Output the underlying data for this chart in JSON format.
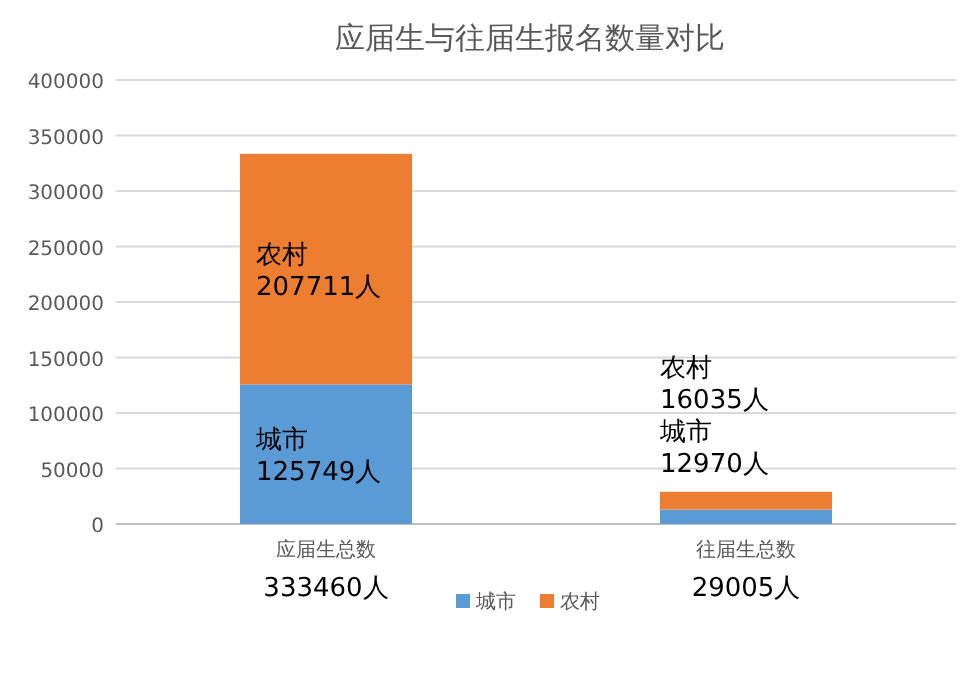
{
  "chart_data": {
    "type": "bar",
    "title": "应届生与往届生报名数量对比",
    "stacked": true,
    "categories": [
      "应届生总数",
      "往届生总数"
    ],
    "series": [
      {
        "name": "城市",
        "color": "#5b9bd5",
        "values": [
          125749,
          12970
        ],
        "value_labels": [
          "城市\n125749人",
          "城市\n12970人"
        ]
      },
      {
        "name": "农村",
        "color": "#ed7d31",
        "values": [
          207711,
          16035
        ],
        "value_labels": [
          "农村\n207711人",
          "农村\n16035人"
        ]
      }
    ],
    "totals": [
      "333460人",
      "29005人"
    ],
    "ylim": [
      0,
      400000
    ],
    "yticks": [
      0,
      50000,
      100000,
      150000,
      200000,
      250000,
      300000,
      350000,
      400000
    ],
    "grid": "y",
    "legend": "bottom"
  }
}
